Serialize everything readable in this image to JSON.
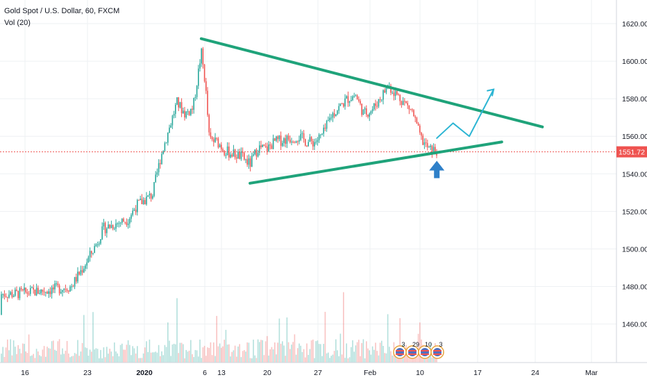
{
  "header": {
    "title": "Gold Spot / U.S. Dollar, 60, FXCM",
    "volume_label": "Vol (20)"
  },
  "price_tag": "1551.72",
  "event_badges": [
    "3",
    "29",
    "10",
    "3"
  ],
  "colors": {
    "up_candle": "#26a69a",
    "down_candle": "#ef5350",
    "pattern_line": "#1fa37a",
    "projection_line": "#2cb5d3",
    "support_arrow": "#2f80c9",
    "price_tag": "#ef5350",
    "grid": "#eef0f3",
    "axis_text": "#131722"
  },
  "chart_data": {
    "type": "candlestick",
    "title": "Gold Spot / U.S. Dollar, 60, FXCM",
    "indicator": "Vol (20)",
    "timeframe": "60",
    "ylim": [
      1448,
      1630
    ],
    "y_ticks": [
      "1620.00",
      "1600.00",
      "1580.00",
      "1560.00",
      "1540.00",
      "1520.00",
      "1500.00",
      "1480.00",
      "1460.00"
    ],
    "x_ticks": [
      "16",
      "23",
      "2020",
      "6",
      "13",
      "20",
      "27",
      "Feb",
      "10",
      "17",
      "24",
      "Mar"
    ],
    "last_price": 1551.72,
    "grid": true,
    "price_path": [
      {
        "x": "Dec 11",
        "y": 1465
      },
      {
        "x": "Dec 12",
        "y": 1472
      },
      {
        "x": "Dec 13",
        "y": 1476
      },
      {
        "x": "Dec 16",
        "y": 1476
      },
      {
        "x": "Dec 18",
        "y": 1477
      },
      {
        "x": "Dec 20",
        "y": 1478
      },
      {
        "x": "Dec 23",
        "y": 1480
      },
      {
        "x": "Dec 24",
        "y": 1487
      },
      {
        "x": "Dec 25",
        "y": 1494
      },
      {
        "x": "Dec 26",
        "y": 1502
      },
      {
        "x": "Dec 27",
        "y": 1511
      },
      {
        "x": "Dec 30",
        "y": 1516
      },
      {
        "x": "Dec 31",
        "y": 1523
      },
      {
        "x": "Jan 2",
        "y": 1529
      },
      {
        "x": "Jan 3",
        "y": 1549
      },
      {
        "x": "Jan 5",
        "y": 1578
      },
      {
        "x": "Jan 6",
        "y": 1572
      },
      {
        "x": "Jan 7",
        "y": 1575
      },
      {
        "x": "Jan 8",
        "y": 1605
      },
      {
        "x": "Jan 8 late",
        "y": 1588
      },
      {
        "x": "Jan 9",
        "y": 1558
      },
      {
        "x": "Jan 10",
        "y": 1557
      },
      {
        "x": "Jan 11",
        "y": 1552
      },
      {
        "x": "Jan 13",
        "y": 1549
      },
      {
        "x": "Jan 14",
        "y": 1545
      },
      {
        "x": "Jan 15",
        "y": 1554
      },
      {
        "x": "Jan 16",
        "y": 1553
      },
      {
        "x": "Jan 17",
        "y": 1557
      },
      {
        "x": "Jan 20",
        "y": 1560
      },
      {
        "x": "Jan 21",
        "y": 1557
      },
      {
        "x": "Jan 22",
        "y": 1557
      },
      {
        "x": "Jan 23",
        "y": 1561
      },
      {
        "x": "Jan 24",
        "y": 1571
      },
      {
        "x": "Jan 26",
        "y": 1580
      },
      {
        "x": "Jan 27",
        "y": 1582
      },
      {
        "x": "Jan 28",
        "y": 1572
      },
      {
        "x": "Jan 29",
        "y": 1574
      },
      {
        "x": "Jan 30",
        "y": 1580
      },
      {
        "x": "Jan 31",
        "y": 1587
      },
      {
        "x": "Feb 2",
        "y": 1578
      },
      {
        "x": "Feb 3",
        "y": 1573
      },
      {
        "x": "Feb 4",
        "y": 1559
      },
      {
        "x": "Feb 5",
        "y": 1553
      },
      {
        "x": "Feb 6",
        "y": 1552
      }
    ],
    "annotations": {
      "upper_trendline": [
        {
          "x": "Jan 8",
          "y": 1612
        },
        {
          "x": "Feb 19",
          "y": 1565
        }
      ],
      "lower_trendline": [
        {
          "x": "Jan 14",
          "y": 1535
        },
        {
          "x": "Feb 14",
          "y": 1557
        }
      ],
      "projection_path": [
        {
          "x": "Feb 6",
          "y": 1559
        },
        {
          "x": "Feb 8",
          "y": 1567
        },
        {
          "x": "Feb 10",
          "y": 1560
        },
        {
          "x": "Feb 13",
          "y": 1585
        }
      ],
      "support_arrow_at": {
        "x": "Feb 6",
        "y": 1544
      }
    }
  }
}
